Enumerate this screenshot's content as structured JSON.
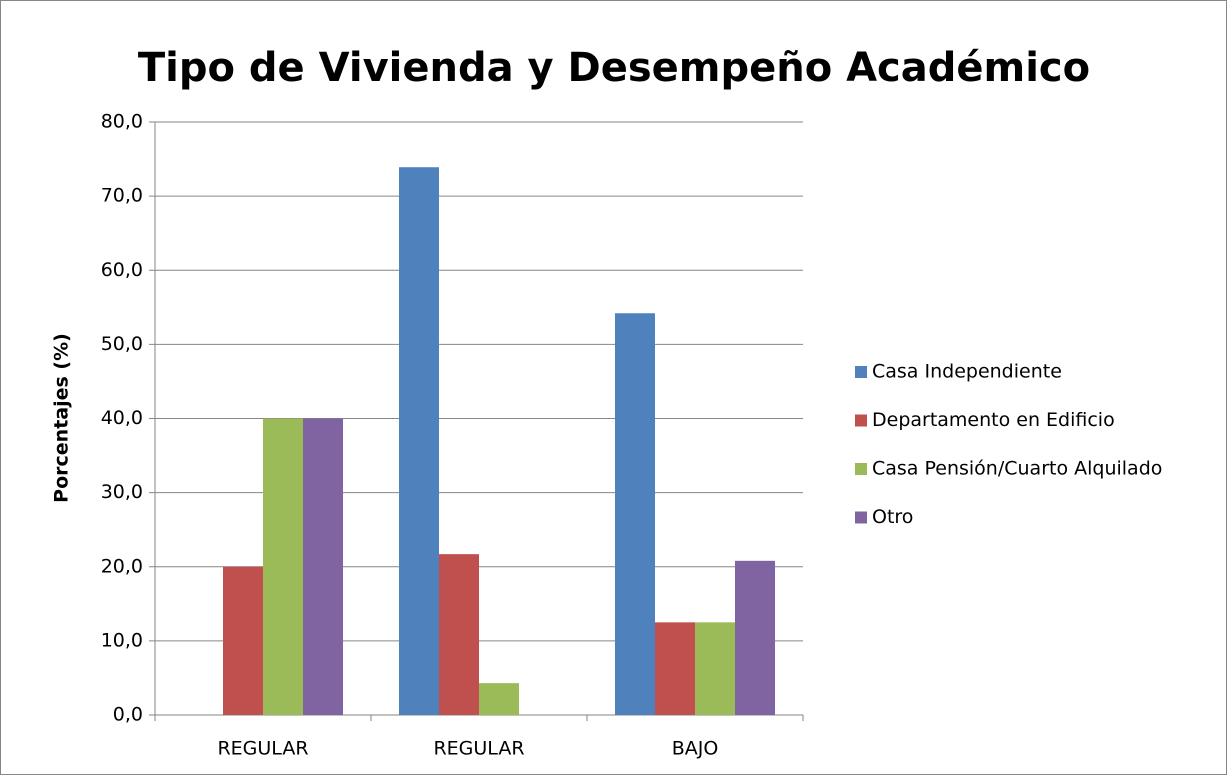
{
  "chart_data": {
    "type": "bar",
    "title": "Tipo de Vivienda y Desempeño Académico",
    "y_label": "Porcentajes (%)",
    "categories": [
      "REGULAR",
      "REGULAR",
      "BAJO"
    ],
    "series": [
      {
        "name": "Casa Independiente",
        "color": "#4f81bd",
        "values": [
          0,
          73.9,
          54.2
        ]
      },
      {
        "name": "Departamento en Edificio",
        "color": "#c0504d",
        "values": [
          20,
          21.7,
          12.5
        ]
      },
      {
        "name": "Casa Pensión/Cuarto Alquilado",
        "color": "#9bbb59",
        "values": [
          40,
          4.3,
          12.5
        ]
      },
      {
        "name": "Otro",
        "color": "#8064a2",
        "values": [
          40,
          0,
          20.8
        ]
      }
    ],
    "ylim": [
      0,
      80
    ],
    "yticks": [
      {
        "value": 0,
        "label": "0,0"
      },
      {
        "value": 10,
        "label": "10,0"
      },
      {
        "value": 20,
        "label": "20,0"
      },
      {
        "value": 30,
        "label": "30,0"
      },
      {
        "value": 40,
        "label": "40,0"
      },
      {
        "value": 50,
        "label": "50,0"
      },
      {
        "value": 60,
        "label": "60,0"
      },
      {
        "value": 70,
        "label": "70,0"
      },
      {
        "value": 80,
        "label": "80,0"
      }
    ],
    "grid": true,
    "legend": "right"
  }
}
